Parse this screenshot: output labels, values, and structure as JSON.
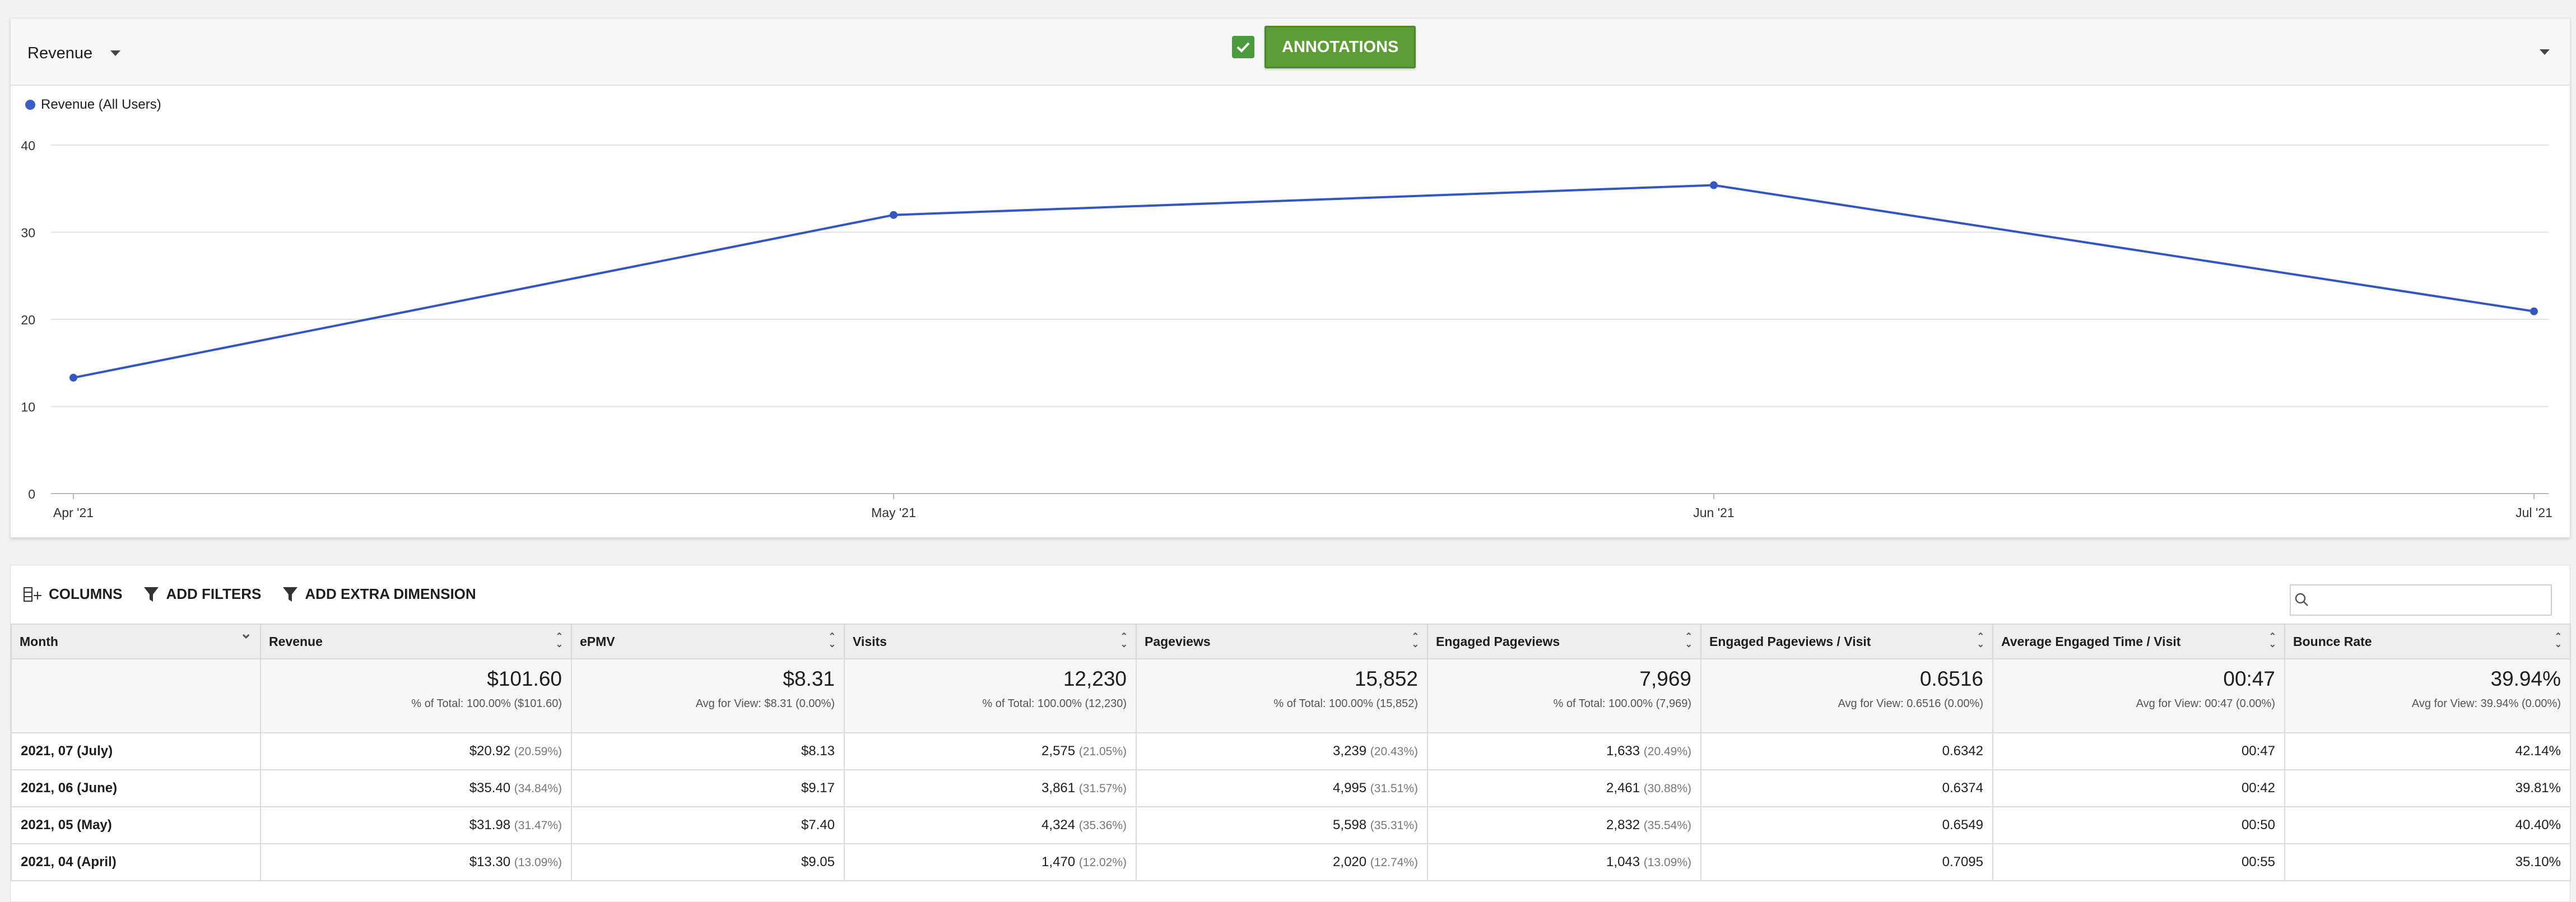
{
  "chart_panel": {
    "metric_label": "Revenue",
    "annotations_label": "ANNOTATIONS",
    "annotations_checked": true,
    "legend_label": "Revenue (All Users)"
  },
  "chart_data": {
    "type": "line",
    "categories": [
      "Apr '21",
      "May '21",
      "Jun '21",
      "Jul '21"
    ],
    "series": [
      {
        "name": "Revenue (All Users)",
        "values": [
          13.3,
          31.98,
          35.4,
          20.92
        ],
        "color": "#3356c0"
      }
    ],
    "yticks": [
      "0",
      "10",
      "20",
      "30",
      "40"
    ],
    "ylim": [
      0,
      40
    ],
    "grid": true,
    "legend_position": "top-left"
  },
  "toolbar": {
    "columns_label": "COLUMNS",
    "filters_label": "ADD FILTERS",
    "dimension_label": "ADD EXTRA DIMENSION"
  },
  "table": {
    "headers": [
      "Month",
      "Revenue",
      "ePMV",
      "Visits",
      "Pageviews",
      "Engaged Pageviews",
      "Engaged Pageviews / Visit",
      "Average Engaged Time / Visit",
      "Bounce Rate"
    ],
    "totals": [
      {
        "value": "",
        "sub": ""
      },
      {
        "value": "$101.60",
        "sub": "% of Total: 100.00% ($101.60)"
      },
      {
        "value": "$8.31",
        "sub": "Avg for View: $8.31 (0.00%)"
      },
      {
        "value": "12,230",
        "sub": "% of Total: 100.00% (12,230)"
      },
      {
        "value": "15,852",
        "sub": "% of Total: 100.00% (15,852)"
      },
      {
        "value": "7,969",
        "sub": "% of Total: 100.00% (7,969)"
      },
      {
        "value": "0.6516",
        "sub": "Avg for View: 0.6516 (0.00%)"
      },
      {
        "value": "00:47",
        "sub": "Avg for View: 00:47 (0.00%)"
      },
      {
        "value": "39.94%",
        "sub": "Avg for View: 39.94% (0.00%)"
      }
    ],
    "rows": [
      [
        {
          "v": "2021, 07 (July)"
        },
        {
          "v": "$20.92",
          "p": "(20.59%)"
        },
        {
          "v": "$8.13"
        },
        {
          "v": "2,575",
          "p": "(21.05%)"
        },
        {
          "v": "3,239",
          "p": "(20.43%)"
        },
        {
          "v": "1,633",
          "p": "(20.49%)"
        },
        {
          "v": "0.6342"
        },
        {
          "v": "00:47"
        },
        {
          "v": "42.14%"
        }
      ],
      [
        {
          "v": "2021, 06 (June)"
        },
        {
          "v": "$35.40",
          "p": "(34.84%)"
        },
        {
          "v": "$9.17"
        },
        {
          "v": "3,861",
          "p": "(31.57%)"
        },
        {
          "v": "4,995",
          "p": "(31.51%)"
        },
        {
          "v": "2,461",
          "p": "(30.88%)"
        },
        {
          "v": "0.6374"
        },
        {
          "v": "00:42"
        },
        {
          "v": "39.81%"
        }
      ],
      [
        {
          "v": "2021, 05 (May)"
        },
        {
          "v": "$31.98",
          "p": "(31.47%)"
        },
        {
          "v": "$7.40"
        },
        {
          "v": "4,324",
          "p": "(35.36%)"
        },
        {
          "v": "5,598",
          "p": "(35.31%)"
        },
        {
          "v": "2,832",
          "p": "(35.54%)"
        },
        {
          "v": "0.6549"
        },
        {
          "v": "00:50"
        },
        {
          "v": "40.40%"
        }
      ],
      [
        {
          "v": "2021, 04 (April)"
        },
        {
          "v": "$13.30",
          "p": "(13.09%)"
        },
        {
          "v": "$9.05"
        },
        {
          "v": "1,470",
          "p": "(12.02%)"
        },
        {
          "v": "2,020",
          "p": "(12.74%)"
        },
        {
          "v": "1,043",
          "p": "(13.09%)"
        },
        {
          "v": "0.7095"
        },
        {
          "v": "00:55"
        },
        {
          "v": "35.10%"
        }
      ]
    ]
  }
}
